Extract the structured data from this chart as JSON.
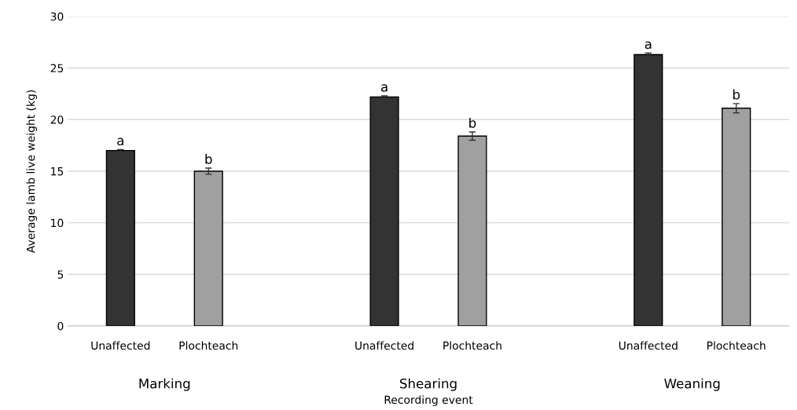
{
  "chart_data": {
    "type": "bar",
    "categories": [
      "Unaffected",
      "Plochteach",
      null,
      "Unaffected",
      "Plochteach",
      null,
      "Unaffected",
      "Plochteach"
    ],
    "values": [
      17.0,
      15.0,
      null,
      22.2,
      18.4,
      null,
      26.3,
      21.1
    ],
    "errors": [
      0.1,
      0.3,
      null,
      0.1,
      0.4,
      null,
      0.15,
      0.45
    ],
    "colors": [
      "#333333",
      "#a0a0a0",
      null,
      "#333333",
      "#a0a0a0",
      null,
      "#333333",
      "#a0a0a0"
    ],
    "value_labels": [
      "a",
      "b",
      null,
      "a",
      "b",
      null,
      "a",
      "b"
    ],
    "annotations": [
      "Marking",
      "Shearing",
      "Weaning"
    ],
    "xlabel": "Recording event",
    "ylabel": "Average lamb live weight (kg)",
    "ylim": [
      0,
      30
    ],
    "yticks": [
      0,
      5,
      10,
      15,
      20,
      25,
      30
    ],
    "grid": "y",
    "legend": false
  }
}
